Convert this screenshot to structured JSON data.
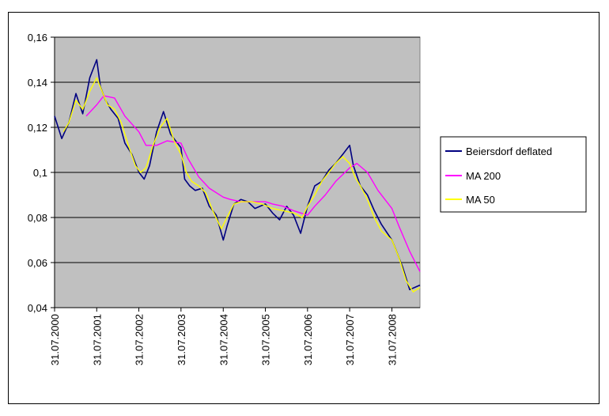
{
  "chart_data": {
    "type": "line",
    "title": "",
    "xlabel": "",
    "ylabel": "",
    "ylim": [
      0.04,
      0.16
    ],
    "xlim": [
      "2000-07-31",
      "2009-03-31"
    ],
    "y_ticks": [
      "0,04",
      "0,06",
      "0,08",
      "0,1",
      "0,12",
      "0,14",
      "0,16"
    ],
    "x_ticks": [
      "31.07.2000",
      "31.07.2001",
      "31.07.2002",
      "31.07.2003",
      "31.07.2004",
      "31.07.2005",
      "31.07.2006",
      "31.07.2007",
      "31.07.2008"
    ],
    "grid": true,
    "plot_background": "#c0c0c0",
    "legend_position": "right",
    "series": [
      {
        "name": "Beiersdorf deflated",
        "color": "#000080",
        "x": [
          "2000-07-31",
          "2000-10-01",
          "2000-12-01",
          "2001-02-01",
          "2001-04-01",
          "2001-06-01",
          "2001-07-31",
          "2001-09-01",
          "2001-10-15",
          "2001-12-01",
          "2002-02-01",
          "2002-04-01",
          "2002-06-01",
          "2002-08-01",
          "2002-09-15",
          "2002-11-01",
          "2003-01-01",
          "2003-03-01",
          "2003-05-01",
          "2003-06-15",
          "2003-07-31",
          "2003-09-01",
          "2003-10-15",
          "2003-12-01",
          "2004-02-01",
          "2004-04-01",
          "2004-06-01",
          "2004-07-31",
          "2004-09-01",
          "2004-11-01",
          "2005-01-01",
          "2005-03-01",
          "2005-05-01",
          "2005-07-31",
          "2005-10-01",
          "2005-12-01",
          "2006-02-01",
          "2006-04-01",
          "2006-06-01",
          "2006-07-31",
          "2006-10-01",
          "2006-12-01",
          "2007-02-01",
          "2007-04-01",
          "2007-06-01",
          "2007-07-31",
          "2007-09-01",
          "2007-11-01",
          "2008-01-01",
          "2008-03-01",
          "2008-05-01",
          "2008-07-31",
          "2008-09-01",
          "2008-11-01",
          "2009-01-01",
          "2009-03-31"
        ],
        "values": [
          0.125,
          0.115,
          0.122,
          0.135,
          0.126,
          0.142,
          0.15,
          0.138,
          0.132,
          0.128,
          0.124,
          0.113,
          0.108,
          0.1,
          0.097,
          0.103,
          0.118,
          0.127,
          0.117,
          0.114,
          0.111,
          0.097,
          0.094,
          0.092,
          0.093,
          0.085,
          0.081,
          0.07,
          0.076,
          0.086,
          0.088,
          0.087,
          0.084,
          0.086,
          0.082,
          0.079,
          0.085,
          0.081,
          0.073,
          0.085,
          0.094,
          0.096,
          0.101,
          0.104,
          0.108,
          0.112,
          0.103,
          0.094,
          0.09,
          0.083,
          0.077,
          0.07,
          0.066,
          0.058,
          0.048,
          0.05
        ]
      },
      {
        "name": "MA 200",
        "color": "#ff00ff",
        "x": [
          "2001-05-01",
          "2001-07-31",
          "2001-10-01",
          "2002-01-01",
          "2002-04-01",
          "2002-07-31",
          "2002-10-01",
          "2003-01-01",
          "2003-04-01",
          "2003-07-31",
          "2003-10-01",
          "2004-01-01",
          "2004-04-01",
          "2004-07-31",
          "2004-10-01",
          "2005-01-01",
          "2005-04-01",
          "2005-07-31",
          "2005-10-01",
          "2006-01-01",
          "2006-04-01",
          "2006-07-31",
          "2006-10-01",
          "2007-01-01",
          "2007-04-01",
          "2007-07-31",
          "2007-10-01",
          "2008-01-01",
          "2008-04-01",
          "2008-07-31",
          "2008-10-01",
          "2009-01-01",
          "2009-03-31"
        ],
        "values": [
          0.125,
          0.13,
          0.134,
          0.133,
          0.125,
          0.118,
          0.112,
          0.112,
          0.114,
          0.113,
          0.106,
          0.098,
          0.093,
          0.089,
          0.088,
          0.087,
          0.087,
          0.087,
          0.086,
          0.085,
          0.083,
          0.081,
          0.085,
          0.09,
          0.096,
          0.102,
          0.104,
          0.1,
          0.092,
          0.084,
          0.076,
          0.065,
          0.056
        ]
      },
      {
        "name": "MA 50",
        "color": "#ffff00",
        "x": [
          "2000-10-15",
          "2000-12-01",
          "2001-02-01",
          "2001-04-01",
          "2001-06-01",
          "2001-07-31",
          "2001-09-15",
          "2001-11-01",
          "2002-01-01",
          "2002-03-01",
          "2002-05-01",
          "2002-07-01",
          "2002-08-15",
          "2002-10-01",
          "2002-12-01",
          "2003-02-01",
          "2003-04-01",
          "2003-06-01",
          "2003-07-31",
          "2003-09-15",
          "2003-11-01",
          "2004-01-01",
          "2004-03-01",
          "2004-05-01",
          "2004-07-15",
          "2004-09-01",
          "2004-11-01",
          "2005-01-01",
          "2005-04-01",
          "2005-07-01",
          "2005-10-01",
          "2006-01-01",
          "2006-04-01",
          "2006-06-15",
          "2006-08-01",
          "2006-10-01",
          "2006-12-01",
          "2007-02-01",
          "2007-04-01",
          "2007-06-01",
          "2007-07-31",
          "2007-09-15",
          "2007-11-01",
          "2008-01-01",
          "2008-03-01",
          "2008-05-01",
          "2008-07-31",
          "2008-10-01",
          "2008-12-01",
          "2009-02-01",
          "2009-03-31"
        ],
        "values": [
          0.118,
          0.122,
          0.132,
          0.128,
          0.136,
          0.142,
          0.136,
          0.13,
          0.128,
          0.122,
          0.112,
          0.103,
          0.1,
          0.102,
          0.112,
          0.12,
          0.124,
          0.114,
          0.108,
          0.1,
          0.096,
          0.094,
          0.091,
          0.083,
          0.075,
          0.08,
          0.086,
          0.087,
          0.087,
          0.086,
          0.084,
          0.083,
          0.082,
          0.08,
          0.085,
          0.09,
          0.096,
          0.1,
          0.104,
          0.107,
          0.104,
          0.098,
          0.094,
          0.088,
          0.08,
          0.074,
          0.07,
          0.062,
          0.052,
          0.047,
          0.049
        ]
      }
    ]
  }
}
